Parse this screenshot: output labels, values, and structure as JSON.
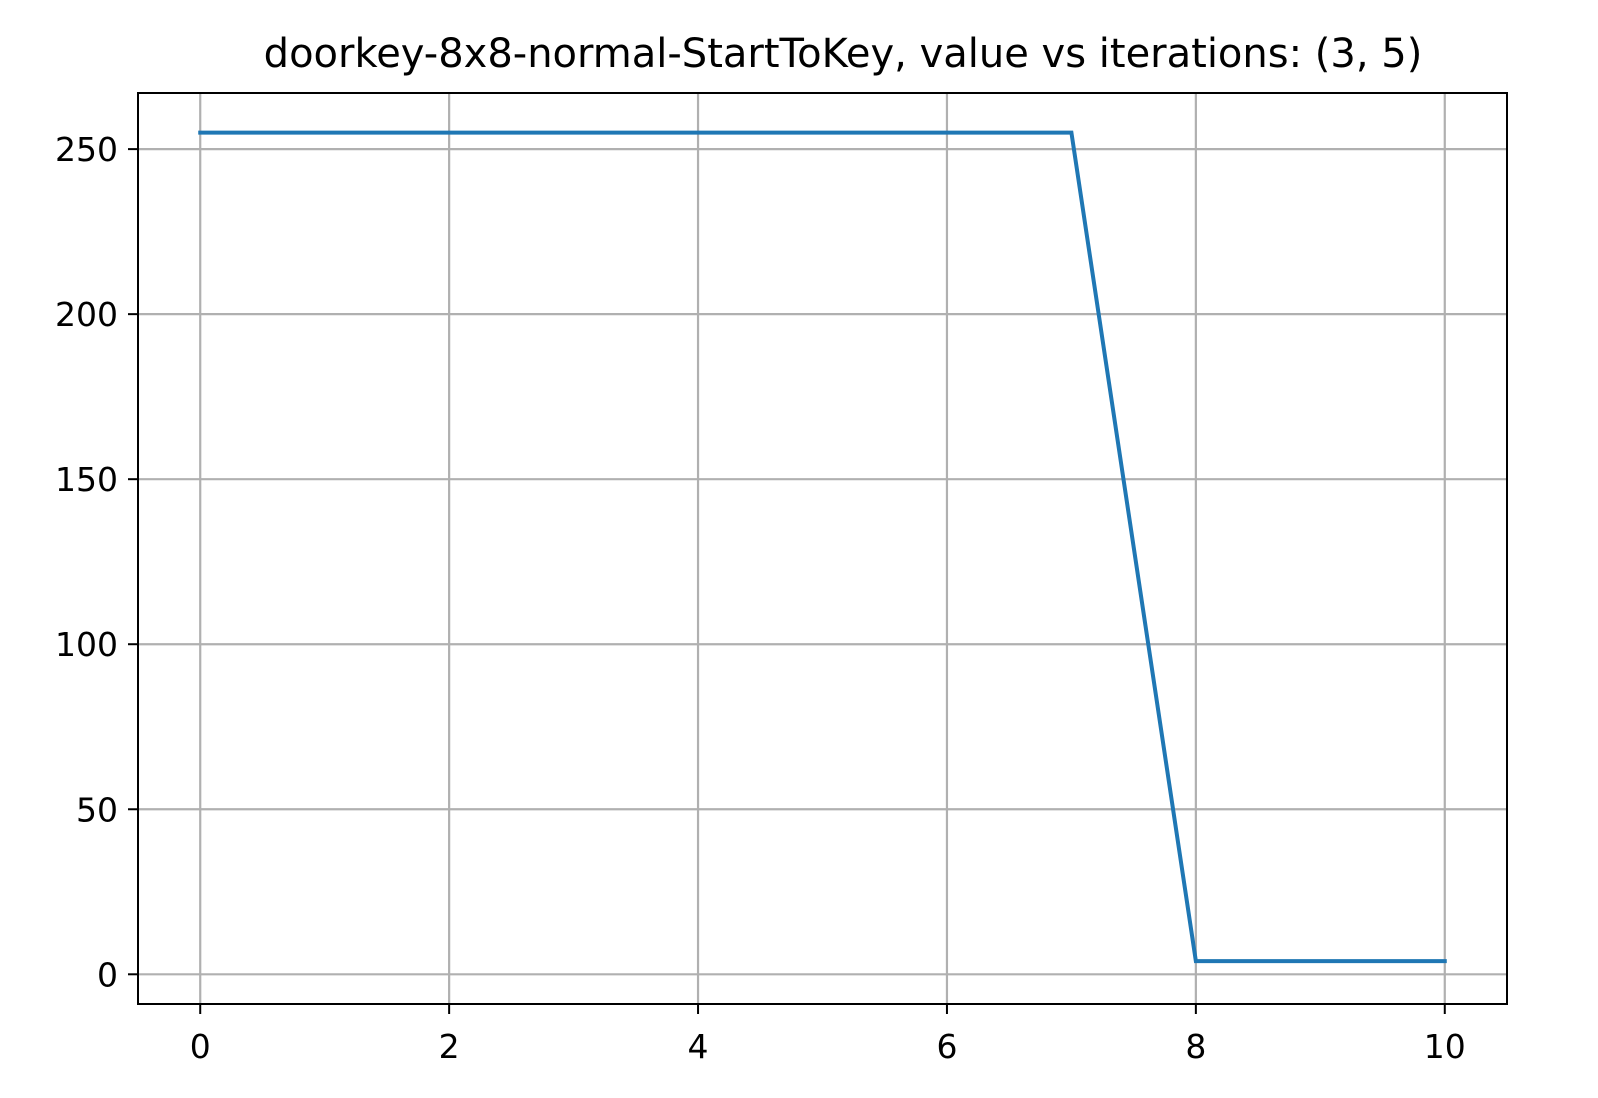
{
  "chart_data": {
    "type": "line",
    "title": "doorkey-8x8-normal-StartToKey, value vs iterations: (3, 5)",
    "xlabel": "",
    "ylabel": "",
    "xlim": [
      -0.5,
      10.5
    ],
    "ylim": [
      -9,
      267
    ],
    "xticks": [
      0,
      2,
      4,
      6,
      8,
      10
    ],
    "yticks": [
      0,
      50,
      100,
      150,
      200,
      250
    ],
    "grid": true,
    "series": [
      {
        "color": "#1f77b4",
        "x": [
          0,
          1,
          2,
          3,
          4,
          5,
          6,
          7,
          8,
          9,
          10
        ],
        "y": [
          255,
          255,
          255,
          255,
          255,
          255,
          255,
          255,
          4,
          4,
          4
        ]
      }
    ]
  }
}
